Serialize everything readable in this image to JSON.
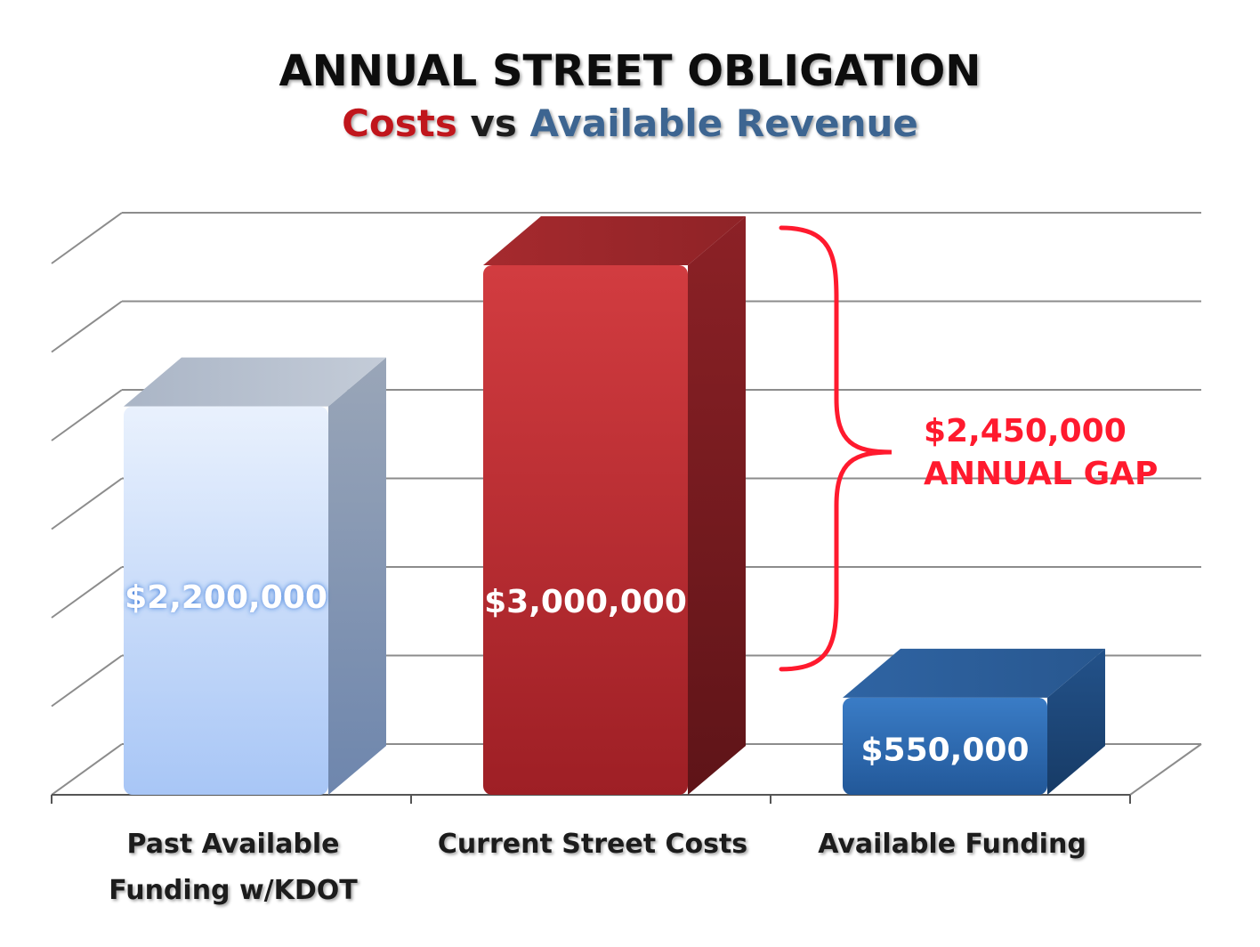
{
  "colors": {
    "title": "#111111",
    "costs": "#c0171e",
    "revenue": "#3d6591",
    "gap": "#ff1a2e",
    "bar_past": "#c9dcfb",
    "bar_costs": "#b8292e",
    "bar_funding": "#2d66ae",
    "grid": "#8c8c8c"
  },
  "chart_data": {
    "type": "bar",
    "title": "ANNUAL STREET OBLIGATION",
    "subtitle_parts": [
      "Costs",
      " vs ",
      "Available Revenue"
    ],
    "categories": [
      "Past Available Funding w/KDOT",
      "Current Street Costs",
      "Available Funding"
    ],
    "category_lines": [
      [
        "Past Available",
        "Funding w/KDOT"
      ],
      [
        "Current Street Costs"
      ],
      [
        "Available Funding"
      ]
    ],
    "values": [
      2200000,
      3000000,
      550000
    ],
    "value_labels": [
      "$2,200,000",
      "$3,000,000",
      "$550,000"
    ],
    "ylim": [
      0,
      3000000
    ],
    "grid": true,
    "annotation": {
      "lines": [
        "$2,450,000",
        "ANNUAL GAP"
      ],
      "from_value": 550000,
      "to_value": 3000000
    }
  }
}
